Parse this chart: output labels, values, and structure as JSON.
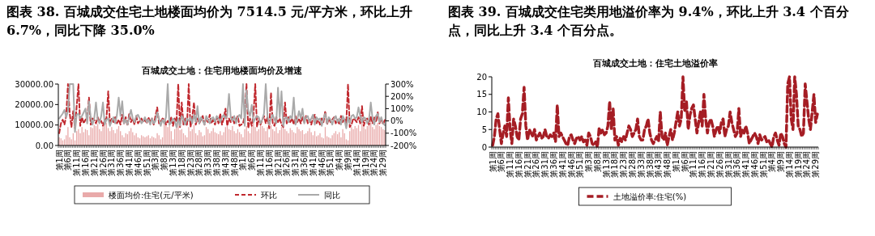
{
  "chart_data": [
    {
      "type": "bar",
      "title": "图表 38. 百城成交住宅土地楼面均价为 7514.5 元/平方米，环比上升 6.7%，同比下降 35.0%",
      "subtitle": "百城成交土地：住宅用地楼面均价及增速",
      "categories": [
        "第1周",
        null,
        null,
        null,
        null,
        "第6周",
        null,
        null,
        null,
        null,
        "第11周",
        null,
        null,
        null,
        null,
        "第16周",
        null,
        null,
        null,
        null,
        "第21周",
        null,
        null,
        null,
        null,
        "第26周",
        null,
        null,
        null,
        null,
        "第31周",
        null,
        null,
        null,
        null,
        "第36周",
        null,
        null,
        null,
        null,
        "第41周",
        null,
        null,
        null,
        null,
        "第46周",
        null,
        null,
        null,
        null,
        "第51周",
        null,
        null,
        null,
        null,
        "第3周",
        null,
        null,
        null,
        null,
        "第8周",
        null,
        null,
        null,
        null,
        "第13周",
        null,
        null,
        null,
        null,
        "第18周",
        null,
        null,
        null,
        null,
        "第23周",
        null,
        null,
        null,
        null,
        "第28周",
        null,
        null,
        null,
        null,
        "第33周",
        null,
        null,
        null,
        null,
        "第38周",
        null,
        null,
        null,
        null,
        "第43周",
        null,
        null,
        null,
        null,
        "第48周",
        null,
        null,
        null,
        null,
        "第1周",
        null,
        null,
        null,
        null,
        "第6周",
        null,
        null,
        null,
        null,
        "第11周",
        null,
        null,
        null,
        null,
        "第16周",
        null,
        null,
        null,
        null,
        "第21周",
        null,
        null,
        null,
        null,
        "第26周",
        null,
        null,
        null,
        null,
        "第31周",
        null,
        null,
        null,
        null,
        "第36周",
        null,
        null,
        null,
        null,
        "第41周",
        null,
        null,
        null,
        null,
        "第46周",
        null,
        null,
        null,
        null,
        "第51周",
        null,
        null,
        null,
        null,
        "第4周",
        null,
        null,
        null,
        null,
        "第9周",
        null,
        null,
        null,
        null,
        "第14周",
        null,
        null,
        null,
        null,
        "第19周",
        null,
        null,
        null,
        null,
        "第24周",
        null,
        null,
        null,
        null,
        "第29周",
        null
      ],
      "ylim": [
        0,
        30000
      ],
      "yticks": [
        {
          "value": 0,
          "label": "0.00"
        },
        {
          "value": 10000,
          "label": "10000.00"
        },
        {
          "value": 20000,
          "label": "20000.00"
        },
        {
          "value": 30000,
          "label": "30000.00"
        }
      ],
      "y2lim": [
        -200,
        300
      ],
      "y2ticks": [
        {
          "value": -200,
          "label": "-200%"
        },
        {
          "value": -100,
          "label": "-100%"
        },
        {
          "value": 0,
          "label": "0%"
        },
        {
          "value": 100,
          "label": "100%"
        },
        {
          "value": 200,
          "label": "200%"
        },
        {
          "value": 300,
          "label": "300%"
        }
      ],
      "legend": "bottom",
      "series": [
        {
          "name": "楼面均价:住宅(元/平米)",
          "type": "bar",
          "color": "#e9aaaa",
          "values": [
            4000,
            3500,
            2500,
            3000,
            5000,
            9000,
            4000,
            3000,
            6000,
            2500,
            7000,
            8000,
            6000,
            9000,
            6500,
            8000,
            7500,
            5000,
            9000,
            8500,
            10000,
            9500,
            10500,
            8000,
            7000,
            9000,
            10000,
            11000,
            8500,
            7000,
            9000,
            7500,
            6000,
            8000,
            9500,
            7000,
            5000,
            4000,
            6000,
            5500,
            7000,
            8500,
            6500,
            5000,
            6000,
            4000,
            3500,
            5000,
            4500,
            4000,
            4500,
            5000,
            3500,
            4500,
            4000,
            3500,
            6000,
            5000,
            3000,
            4000,
            11000,
            12000,
            9000,
            10500,
            7000,
            3000,
            8000,
            9000,
            11000,
            7500,
            8000,
            6000,
            5000,
            4000,
            9000,
            7000,
            8000,
            10000,
            6000,
            5000,
            7500,
            6500,
            4500,
            5000,
            9000,
            8000,
            6000,
            7000,
            8500,
            6500,
            6000,
            5500,
            7000,
            5000,
            6500,
            9000,
            11000,
            8000,
            7500,
            9500,
            7000,
            6000,
            8000,
            6500,
            5500,
            4000,
            8000,
            9500,
            7000,
            6000,
            10000,
            11500,
            9000,
            7000,
            8000,
            10000,
            9500,
            8500,
            7000,
            9000,
            4000,
            10000,
            8000,
            7000,
            9000,
            6000,
            7500,
            9000,
            9000,
            8000,
            7000,
            6000,
            8500,
            7500,
            6500,
            6000,
            9000,
            8000,
            7000,
            7500,
            5500,
            6000,
            7000,
            8500,
            6500,
            5000,
            7000,
            4500,
            5000,
            6000,
            4000,
            3500,
            9000,
            4500,
            4000,
            3500,
            5000,
            6000,
            7000,
            5500,
            6500,
            4000,
            8000,
            6000,
            3000,
            2500,
            7000,
            9000,
            8000,
            9500,
            8500,
            10000,
            7000,
            11000,
            9000,
            8000,
            9500,
            10000,
            12000,
            9000,
            8000,
            10000,
            11000,
            9500,
            9000,
            8000,
            7500
          ]
        },
        {
          "name": "环比",
          "type": "line",
          "axis": "y2",
          "line_style": "dashed",
          "color": "#c0282e",
          "values": [
            -100,
            -20,
            10,
            -30,
            40,
            300,
            60,
            -50,
            80,
            -60,
            120,
            300,
            -40,
            30,
            -20,
            10,
            20,
            190,
            -30,
            20,
            10,
            -20,
            30,
            -10,
            0,
            -40,
            10,
            20,
            240,
            -30,
            20,
            -10,
            30,
            -20,
            10,
            -30,
            50,
            -20,
            30,
            -40,
            60,
            -10,
            20,
            -30,
            40,
            -20,
            0,
            20,
            -10,
            10,
            -20,
            30,
            -10,
            20,
            -30,
            40,
            110,
            -20,
            -10,
            20,
            10,
            -30,
            0,
            -20,
            30,
            -40,
            20,
            -10,
            300,
            -50,
            150,
            -30,
            20,
            -40,
            300,
            -50,
            30,
            150,
            -30,
            20,
            -20,
            10,
            40,
            -30,
            20,
            -10,
            50,
            -20,
            10,
            -30,
            30,
            -20,
            60,
            -30,
            20,
            100,
            -40,
            20,
            -10,
            30,
            -20,
            10,
            40,
            -40,
            -30,
            -20,
            40,
            300,
            -60,
            20,
            -40,
            50,
            300,
            -50,
            20,
            -30,
            10,
            40,
            -20,
            30,
            -60,
            230,
            -20,
            -40,
            30,
            -10,
            20,
            -30,
            -50,
            150,
            -20,
            30,
            -10,
            20,
            -30,
            40,
            -10,
            20,
            -20,
            30,
            -10,
            40,
            -20,
            10,
            -30,
            20,
            50,
            -20,
            10,
            -30,
            20,
            -10,
            80,
            -30,
            20,
            -10,
            10,
            30,
            -20,
            10,
            -30,
            40,
            -10,
            20,
            -20,
            300,
            -50,
            -30,
            20,
            10,
            -10,
            30,
            -20,
            120,
            -40,
            10,
            20,
            -30,
            40,
            -20,
            30,
            -10,
            70,
            -20,
            20,
            -30,
            7
          ]
        },
        {
          "name": "同比",
          "type": "line",
          "axis": "y2",
          "line_style": "solid",
          "color": "#a9a9a9",
          "values": [
            20,
            40,
            60,
            90,
            30,
            80,
            300,
            300,
            300,
            -90,
            50,
            60,
            20,
            40,
            70,
            100,
            -20,
            160,
            30,
            -30,
            20,
            150,
            10,
            -20,
            40,
            150,
            -30,
            10,
            20,
            -40,
            0,
            30,
            -20,
            50,
            190,
            40,
            160,
            -20,
            10,
            -30,
            30,
            90,
            20,
            -10,
            40,
            50,
            20,
            -20,
            0,
            30,
            -10,
            10,
            -30,
            20,
            -20,
            0,
            70,
            20,
            -40,
            10,
            -20,
            30,
            300,
            -30,
            -10,
            20,
            0,
            -50,
            20,
            -40,
            40,
            10,
            -30,
            20,
            0,
            30,
            -20,
            50,
            -10,
            120,
            -20,
            30,
            0,
            -30,
            40,
            10,
            -20,
            20,
            30,
            -10,
            40,
            20,
            -10,
            30,
            50,
            20,
            40,
            220,
            30,
            0,
            40,
            -20,
            30,
            50,
            20,
            300,
            -40,
            250,
            80,
            40,
            130,
            -10,
            20,
            40,
            30,
            -20,
            10,
            60,
            300,
            40,
            -30,
            20,
            50,
            10,
            -20,
            270,
            30,
            240,
            -40,
            20,
            30,
            -10,
            40,
            20,
            190,
            -30,
            10,
            80,
            20,
            100,
            -20,
            30,
            40,
            -10,
            20,
            50,
            -30,
            30,
            10,
            20,
            -40,
            20,
            60,
            -20,
            30,
            10,
            -30,
            20,
            40,
            -10,
            20,
            -30,
            40,
            10,
            -60,
            30,
            -20,
            40,
            50,
            20,
            30,
            110,
            40,
            -10,
            30,
            20,
            -20,
            10,
            150,
            20,
            -30,
            40,
            60,
            -10,
            30,
            -20,
            -35
          ]
        }
      ]
    },
    {
      "type": "line",
      "title": "图表 39. 百城成交住宅类用地溢价率为 9.4%，环比上升 3.4 个百分点，同比上升 3.4 个百分点。",
      "subtitle": "百城成交土地：住宅土地溢价率",
      "categories": [
        "第1周",
        null,
        null,
        null,
        null,
        "第6周",
        null,
        null,
        null,
        null,
        "第11周",
        null,
        null,
        null,
        null,
        "第16周",
        null,
        null,
        null,
        null,
        "第21周",
        null,
        null,
        null,
        null,
        "第26周",
        null,
        null,
        null,
        null,
        "第31周",
        null,
        null,
        null,
        null,
        "第36周",
        null,
        null,
        null,
        null,
        "第41周",
        null,
        null,
        null,
        null,
        "第46周",
        null,
        null,
        null,
        null,
        "第51周",
        null,
        null,
        null,
        null,
        "第3周",
        null,
        null,
        null,
        null,
        "第8周",
        null,
        null,
        null,
        null,
        "第13周",
        null,
        null,
        null,
        null,
        "第18周",
        null,
        null,
        null,
        null,
        "第23周",
        null,
        null,
        null,
        null,
        "第28周",
        null,
        null,
        null,
        null,
        "第33周",
        null,
        null,
        null,
        null,
        "第38周",
        null,
        null,
        null,
        null,
        "第43周",
        null,
        null,
        null,
        null,
        "第48周",
        null,
        null,
        null,
        null,
        "第1周",
        null,
        null,
        null,
        null,
        "第6周",
        null,
        null,
        null,
        null,
        "第11周",
        null,
        null,
        null,
        null,
        "第16周",
        null,
        null,
        null,
        null,
        "第21周",
        null,
        null,
        null,
        null,
        "第26周",
        null,
        null,
        null,
        null,
        "第31周",
        null,
        null,
        null,
        null,
        "第36周",
        null,
        null,
        null,
        null,
        "第41周",
        null,
        null,
        null,
        null,
        "第46周",
        null,
        null,
        null,
        null,
        "第51周",
        null,
        null,
        null,
        null,
        "第4周",
        null,
        null,
        null,
        null,
        "第9周",
        null,
        null,
        null,
        null,
        "第14周",
        null,
        null,
        null,
        null,
        "第19周",
        null,
        null,
        null,
        null,
        "第24周",
        null,
        null,
        null,
        null,
        "第29周",
        null
      ],
      "ylim": [
        0,
        20
      ],
      "yticks": [
        0,
        5,
        10,
        15,
        20
      ],
      "legend": "bottom",
      "series": [
        {
          "name": "土地溢价率:住宅(%)",
          "line_style": "dashed",
          "color": "#a51d24",
          "values": [
            0.5,
            3,
            8,
            9.5,
            5,
            1,
            4,
            6,
            3,
            14,
            5,
            1,
            8,
            6,
            3,
            2,
            8,
            9.5,
            17,
            6,
            2,
            5,
            4,
            3,
            5,
            2,
            3,
            4,
            2.5,
            3,
            5,
            3,
            2.5,
            3.5,
            3,
            4,
            1.5,
            12,
            3,
            4,
            3,
            2,
            1,
            0.5,
            3,
            3.5,
            2,
            1,
            2.5,
            3,
            2,
            3,
            1.5,
            2,
            0.5,
            4,
            3,
            1,
            0.5,
            1.5,
            0,
            5.5,
            4,
            5,
            3.5,
            4,
            6,
            13,
            5,
            11,
            2,
            3,
            0.5,
            2.5,
            1.5,
            3,
            2,
            4,
            6,
            5,
            3,
            4,
            5,
            8,
            3,
            2,
            2,
            5,
            6,
            8,
            4,
            2,
            1,
            2,
            3,
            1.5,
            10,
            3,
            2,
            4,
            0.5,
            3,
            5,
            2,
            4,
            7,
            10,
            6,
            8,
            20,
            10,
            13,
            5,
            9,
            11,
            12,
            8,
            4,
            7,
            10,
            6,
            15,
            8,
            4,
            7,
            8,
            6,
            3,
            5,
            6,
            4,
            7,
            8,
            3,
            5,
            6,
            10,
            7,
            5,
            3,
            4,
            11,
            3,
            5,
            4,
            6,
            4,
            1,
            2,
            3,
            4,
            3,
            1,
            3.5,
            2,
            2.5,
            3,
            1.5,
            2,
            1,
            0,
            3,
            4,
            2,
            0.5,
            4,
            3,
            1,
            0,
            18,
            20,
            8,
            5,
            20,
            15,
            6,
            5,
            3,
            4,
            18,
            13,
            8,
            5,
            10,
            15,
            7,
            9.4
          ]
        }
      ]
    }
  ]
}
